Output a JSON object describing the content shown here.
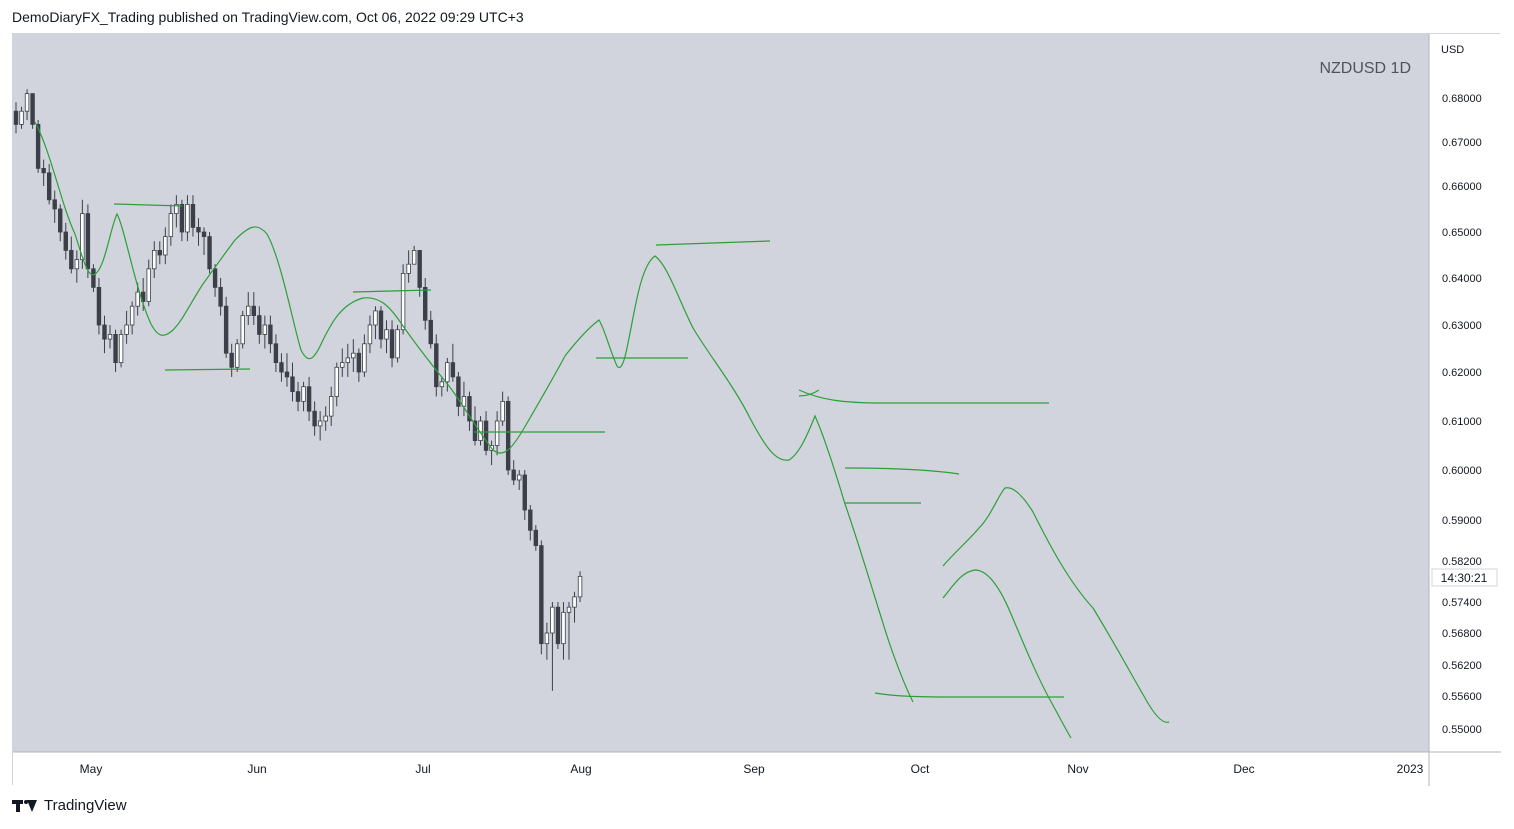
{
  "header": {
    "text": "DemoDiaryFX_Trading published on TradingView.com, Oct 06, 2022 09:29 UTC+3"
  },
  "footer": {
    "brand": "TradingView"
  },
  "colors": {
    "plot_bg": "#d1d4dc",
    "axis_bg": "#ffffff",
    "bear": "#3c3f48",
    "bull": "#ffffff",
    "drawing": "#2e9e3a",
    "text": "#131722"
  },
  "chart_data": {
    "type": "candlestick",
    "symbol_label": "NZDUSD 1D",
    "currency_label": "USD",
    "countdown": "14:30:21",
    "y_ticks": [
      "0.68000",
      "0.67000",
      "0.66000",
      "0.65000",
      "0.64000",
      "0.63000",
      "0.62000",
      "0.61000",
      "0.60000",
      "0.59000",
      "0.58200",
      "0.57400",
      "0.56800",
      "0.56200",
      "0.55600",
      "0.55000"
    ],
    "x_ticks": [
      "May",
      "Jun",
      "Jul",
      "Aug",
      "Sep",
      "Oct",
      "Nov",
      "Dec",
      "2023"
    ],
    "ohlc": [
      [
        0.677,
        0.679,
        0.672,
        0.674
      ],
      [
        0.674,
        0.678,
        0.673,
        0.677
      ],
      [
        0.677,
        0.682,
        0.675,
        0.681
      ],
      [
        0.681,
        0.681,
        0.673,
        0.674
      ],
      [
        0.674,
        0.675,
        0.663,
        0.664
      ],
      [
        0.664,
        0.666,
        0.66,
        0.663
      ],
      [
        0.663,
        0.665,
        0.656,
        0.657
      ],
      [
        0.657,
        0.659,
        0.652,
        0.655
      ],
      [
        0.655,
        0.656,
        0.648,
        0.65
      ],
      [
        0.65,
        0.652,
        0.644,
        0.646
      ],
      [
        0.646,
        0.649,
        0.641,
        0.642
      ],
      [
        0.642,
        0.646,
        0.639,
        0.644
      ],
      [
        0.644,
        0.657,
        0.642,
        0.654
      ],
      [
        0.654,
        0.656,
        0.64,
        0.642
      ],
      [
        0.642,
        0.643,
        0.637,
        0.638
      ],
      [
        0.638,
        0.64,
        0.628,
        0.63
      ],
      [
        0.63,
        0.632,
        0.624,
        0.627
      ],
      [
        0.627,
        0.63,
        0.625,
        0.628
      ],
      [
        0.628,
        0.629,
        0.62,
        0.622
      ],
      [
        0.622,
        0.629,
        0.621,
        0.628
      ],
      [
        0.628,
        0.633,
        0.626,
        0.63
      ],
      [
        0.63,
        0.635,
        0.628,
        0.634
      ],
      [
        0.634,
        0.639,
        0.632,
        0.637
      ],
      [
        0.637,
        0.64,
        0.633,
        0.635
      ],
      [
        0.635,
        0.644,
        0.634,
        0.642
      ],
      [
        0.642,
        0.648,
        0.64,
        0.646
      ],
      [
        0.646,
        0.648,
        0.643,
        0.645
      ],
      [
        0.645,
        0.651,
        0.643,
        0.649
      ],
      [
        0.649,
        0.656,
        0.647,
        0.654
      ],
      [
        0.654,
        0.658,
        0.651,
        0.656
      ],
      [
        0.656,
        0.657,
        0.648,
        0.65
      ],
      [
        0.65,
        0.658,
        0.648,
        0.656
      ],
      [
        0.656,
        0.658,
        0.649,
        0.651
      ],
      [
        0.651,
        0.653,
        0.647,
        0.65
      ],
      [
        0.65,
        0.651,
        0.645,
        0.649
      ],
      [
        0.649,
        0.65,
        0.641,
        0.642
      ],
      [
        0.642,
        0.643,
        0.636,
        0.638
      ],
      [
        0.638,
        0.64,
        0.632,
        0.634
      ],
      [
        0.634,
        0.636,
        0.623,
        0.624
      ],
      [
        0.624,
        0.626,
        0.619,
        0.621
      ],
      [
        0.621,
        0.627,
        0.62,
        0.626
      ],
      [
        0.626,
        0.633,
        0.625,
        0.632
      ],
      [
        0.632,
        0.637,
        0.63,
        0.634
      ],
      [
        0.634,
        0.637,
        0.63,
        0.632
      ],
      [
        0.632,
        0.634,
        0.626,
        0.628
      ],
      [
        0.628,
        0.632,
        0.625,
        0.63
      ],
      [
        0.63,
        0.632,
        0.624,
        0.626
      ],
      [
        0.626,
        0.628,
        0.62,
        0.622
      ],
      [
        0.622,
        0.624,
        0.618,
        0.62
      ],
      [
        0.62,
        0.624,
        0.617,
        0.619
      ],
      [
        0.619,
        0.622,
        0.614,
        0.616
      ],
      [
        0.616,
        0.618,
        0.612,
        0.614
      ],
      [
        0.614,
        0.618,
        0.612,
        0.617
      ],
      [
        0.617,
        0.619,
        0.61,
        0.612
      ],
      [
        0.612,
        0.614,
        0.607,
        0.609
      ],
      [
        0.609,
        0.612,
        0.606,
        0.61
      ],
      [
        0.61,
        0.613,
        0.608,
        0.611
      ],
      [
        0.611,
        0.617,
        0.609,
        0.615
      ],
      [
        0.615,
        0.622,
        0.613,
        0.621
      ],
      [
        0.621,
        0.625,
        0.619,
        0.622
      ],
      [
        0.622,
        0.626,
        0.619,
        0.623
      ],
      [
        0.623,
        0.627,
        0.62,
        0.624
      ],
      [
        0.624,
        0.625,
        0.618,
        0.62
      ],
      [
        0.62,
        0.628,
        0.619,
        0.626
      ],
      [
        0.626,
        0.632,
        0.624,
        0.63
      ],
      [
        0.63,
        0.634,
        0.627,
        0.633
      ],
      [
        0.633,
        0.634,
        0.625,
        0.627
      ],
      [
        0.627,
        0.631,
        0.624,
        0.629
      ],
      [
        0.629,
        0.631,
        0.621,
        0.623
      ],
      [
        0.623,
        0.63,
        0.622,
        0.629
      ],
      [
        0.629,
        0.643,
        0.628,
        0.641
      ],
      [
        0.641,
        0.646,
        0.639,
        0.643
      ],
      [
        0.643,
        0.647,
        0.643,
        0.646
      ],
      [
        0.646,
        0.646,
        0.636,
        0.638
      ],
      [
        0.638,
        0.64,
        0.629,
        0.631
      ],
      [
        0.631,
        0.633,
        0.625,
        0.626
      ],
      [
        0.626,
        0.628,
        0.615,
        0.617
      ],
      [
        0.617,
        0.619,
        0.615,
        0.618
      ],
      [
        0.618,
        0.623,
        0.616,
        0.622
      ],
      [
        0.622,
        0.626,
        0.618,
        0.619
      ],
      [
        0.619,
        0.62,
        0.611,
        0.613
      ],
      [
        0.613,
        0.618,
        0.611,
        0.615
      ],
      [
        0.615,
        0.616,
        0.608,
        0.61
      ],
      [
        0.61,
        0.613,
        0.605,
        0.606
      ],
      [
        0.606,
        0.611,
        0.605,
        0.61
      ],
      [
        0.61,
        0.612,
        0.603,
        0.604
      ],
      [
        0.604,
        0.606,
        0.601,
        0.605
      ],
      [
        0.605,
        0.612,
        0.603,
        0.61
      ],
      [
        0.61,
        0.616,
        0.609,
        0.614
      ],
      [
        0.614,
        0.615,
        0.599,
        0.6
      ],
      [
        0.6,
        0.602,
        0.597,
        0.598
      ],
      [
        0.598,
        0.6,
        0.596,
        0.599
      ],
      [
        0.599,
        0.6,
        0.59,
        0.592
      ],
      [
        0.592,
        0.593,
        0.586,
        0.588
      ],
      [
        0.588,
        0.589,
        0.584,
        0.585
      ],
      [
        0.585,
        0.586,
        0.564,
        0.566
      ],
      [
        0.566,
        0.57,
        0.563,
        0.568
      ],
      [
        0.568,
        0.574,
        0.557,
        0.573
      ],
      [
        0.573,
        0.574,
        0.565,
        0.566
      ],
      [
        0.566,
        0.574,
        0.563,
        0.572
      ],
      [
        0.572,
        0.574,
        0.563,
        0.573
      ],
      [
        0.573,
        0.576,
        0.57,
        0.575
      ],
      [
        0.575,
        0.58,
        0.574,
        0.579
      ]
    ]
  }
}
